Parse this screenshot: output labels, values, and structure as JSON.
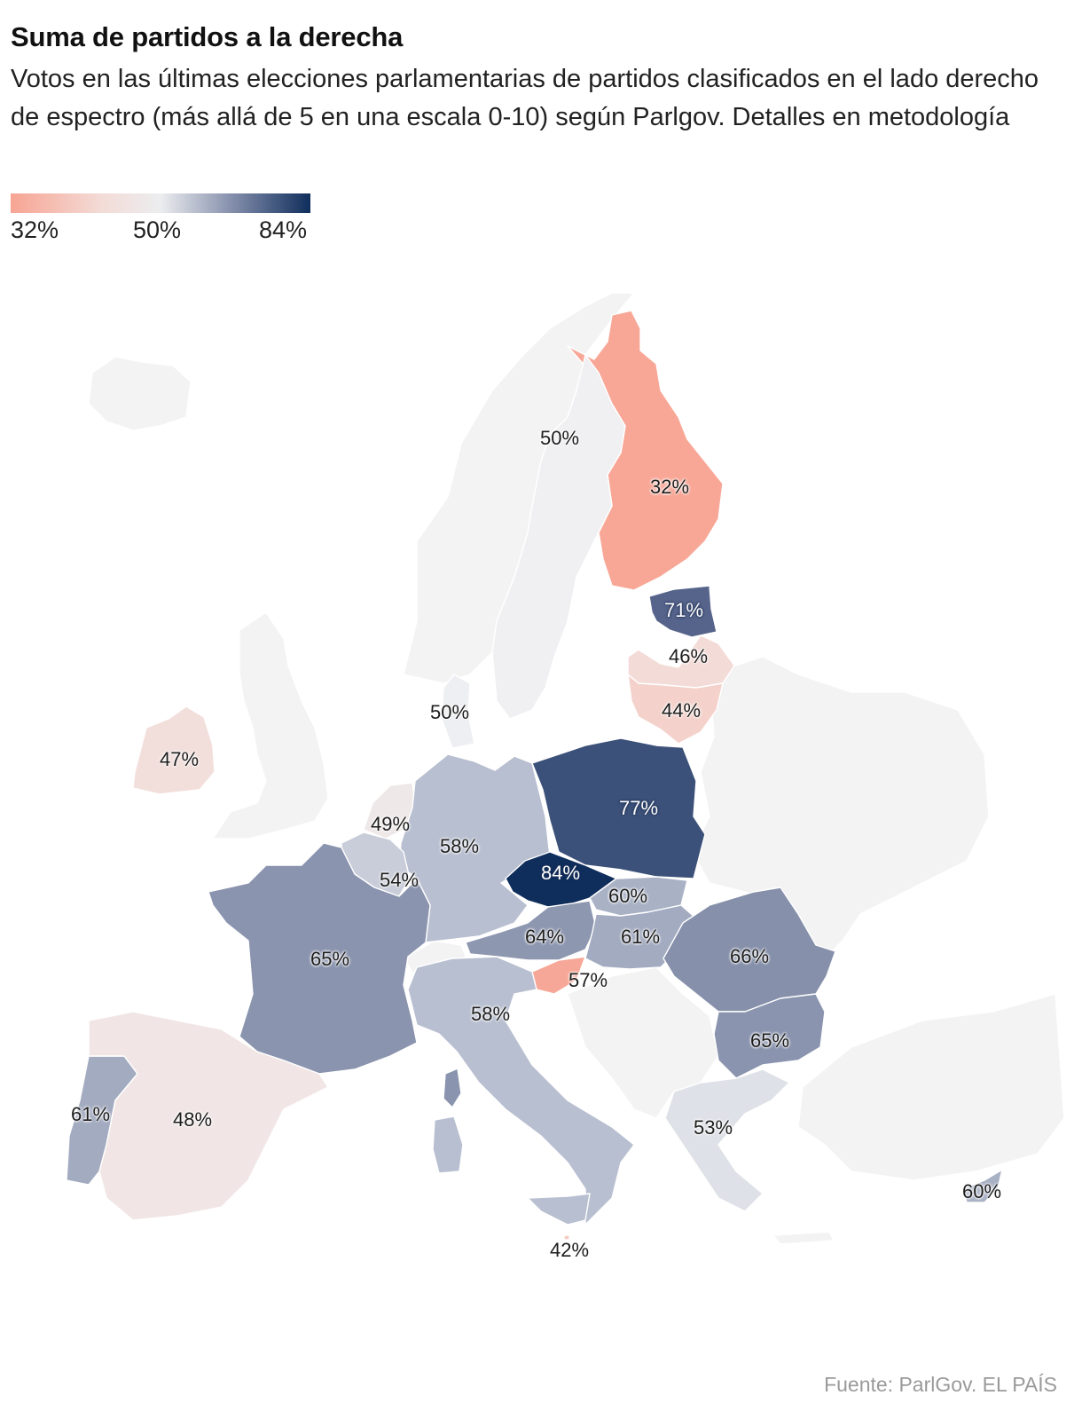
{
  "title": "Suma de partidos a la derecha",
  "subtitle": "Votos en las últimas elecciones parlamentarias de partidos clasificados en el lado derecho de espectro (más allá de 5 en una escala 0-10) según Parlgov. Detalles en metodología",
  "legend": {
    "min": "32%",
    "mid": "50%",
    "max": "84%"
  },
  "colors": {
    "low": "#f7a493",
    "mid": "#ecedef",
    "high": "#0f2e5c",
    "no_data": "#f3f3f4"
  },
  "countries": [
    {
      "name": "Finland",
      "label": "32%",
      "value": 32,
      "color": "#f8a797"
    },
    {
      "name": "Sweden",
      "label": "50%",
      "value": 50,
      "color": "#f0f0f2"
    },
    {
      "name": "Estonia",
      "label": "71%",
      "value": 71,
      "color": "#56648b"
    },
    {
      "name": "Latvia",
      "label": "46%",
      "value": 46,
      "color": "#f3dcd8"
    },
    {
      "name": "Lithuania",
      "label": "44%",
      "value": 44,
      "color": "#f4d2cb"
    },
    {
      "name": "Denmark",
      "label": "50%",
      "value": 50,
      "color": "#eeeff2"
    },
    {
      "name": "Ireland",
      "label": "47%",
      "value": 47,
      "color": "#f2dfdb"
    },
    {
      "name": "Netherlands",
      "label": "49%",
      "value": 49,
      "color": "#efe8e8"
    },
    {
      "name": "Germany",
      "label": "58%",
      "value": 58,
      "color": "#b8bfd0"
    },
    {
      "name": "Poland",
      "label": "77%",
      "value": 77,
      "color": "#3c5179"
    },
    {
      "name": "Czechia",
      "label": "84%",
      "value": 84,
      "color": "#0f2e5c"
    },
    {
      "name": "Belgium",
      "label": "54%",
      "value": 54,
      "color": "#c9cdd9"
    },
    {
      "name": "Slovakia",
      "label": "60%",
      "value": 60,
      "color": "#a9b1c5"
    },
    {
      "name": "Austria",
      "label": "64%",
      "value": 64,
      "color": "#8e97b0"
    },
    {
      "name": "Hungary",
      "label": "61%",
      "value": 61,
      "color": "#a3abc0"
    },
    {
      "name": "France",
      "label": "65%",
      "value": 65,
      "color": "#8a94ae"
    },
    {
      "name": "Romania",
      "label": "66%",
      "value": 66,
      "color": "#8690aa"
    },
    {
      "name": "Slovenia",
      "label": "57%",
      "value": 57,
      "color": "#f7a797"
    },
    {
      "name": "Italy",
      "label": "58%",
      "value": 58,
      "color": "#b8bfd0"
    },
    {
      "name": "Bulgaria",
      "label": "65%",
      "value": 65,
      "color": "#8a94ae"
    },
    {
      "name": "Portugal",
      "label": "61%",
      "value": 61,
      "color": "#a3abc0"
    },
    {
      "name": "Spain",
      "label": "48%",
      "value": 48,
      "color": "#f1e6e5"
    },
    {
      "name": "Greece",
      "label": "53%",
      "value": 53,
      "color": "#dfe1e8"
    },
    {
      "name": "Malta",
      "label": "42%",
      "value": 42,
      "color": "#f5cbc2"
    },
    {
      "name": "Cyprus",
      "label": "60%",
      "value": 60,
      "color": "#a9b1c5"
    }
  ],
  "source": "Fuente: ParlGov. EL PAÍS"
}
